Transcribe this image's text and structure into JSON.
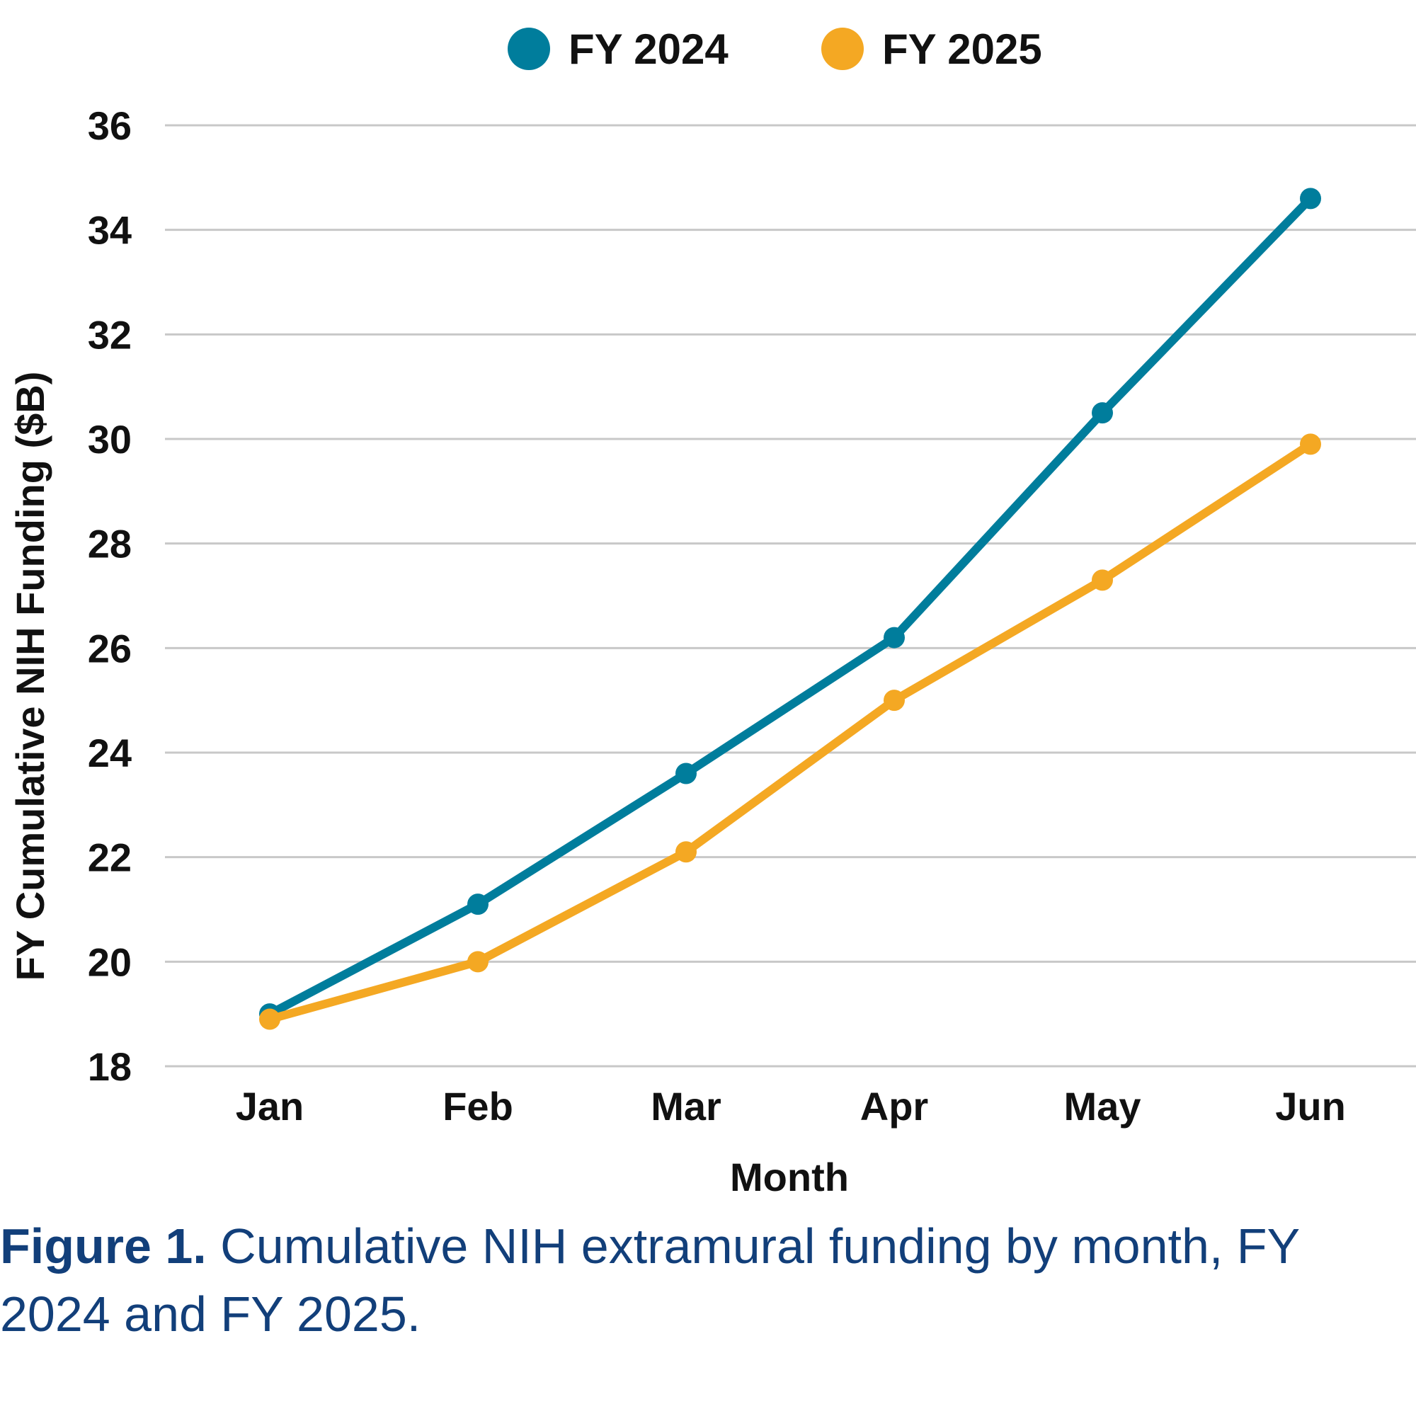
{
  "chart_data": {
    "type": "line",
    "categories": [
      "Jan",
      "Feb",
      "Mar",
      "Apr",
      "May",
      "Jun"
    ],
    "series": [
      {
        "name": "FY 2024",
        "color": "#007d9c",
        "values": [
          19.0,
          21.1,
          23.6,
          26.2,
          30.5,
          34.6
        ]
      },
      {
        "name": "FY 2025",
        "color": "#f4a823",
        "values": [
          18.9,
          20.0,
          22.1,
          25.0,
          27.3,
          29.9
        ]
      }
    ],
    "xlabel": "Month",
    "ylabel": "FY Cumulative NIH Funding ($B)",
    "ylim": [
      18,
      36
    ],
    "yticks": [
      18,
      20,
      22,
      24,
      26,
      28,
      30,
      32,
      34,
      36
    ],
    "grid": true,
    "legend_position": "top-center",
    "gridline_color": "#c8c8c8"
  },
  "caption": {
    "label": "Figure 1.",
    "text": " Cumulative NIH extramural funding by month, FY 2024 and FY 2025."
  }
}
